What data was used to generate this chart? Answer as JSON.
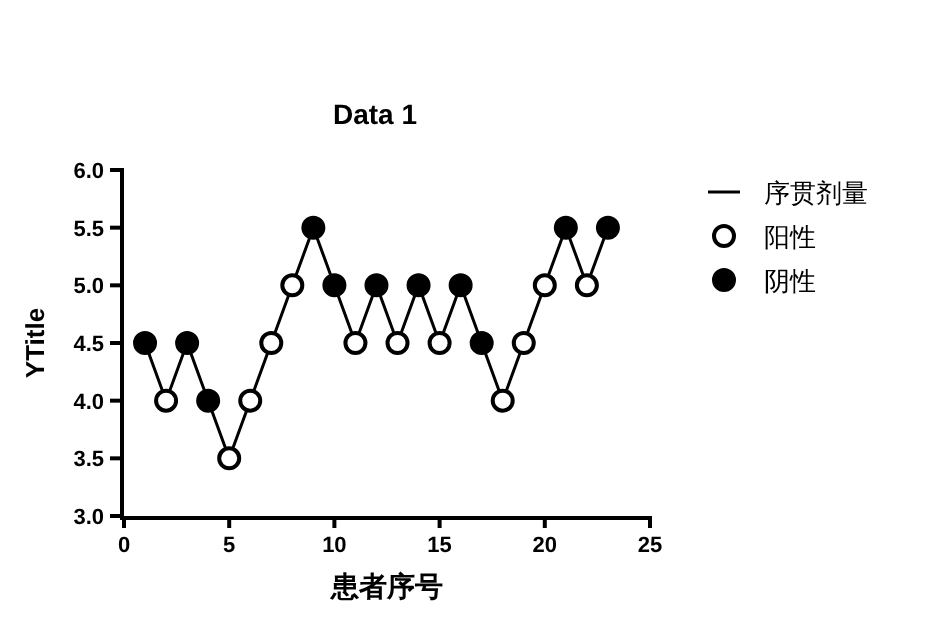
{
  "chart_data": {
    "type": "line",
    "title": "Data 1",
    "xlabel": "患者序号",
    "ylabel": "YTitle",
    "x": [
      1,
      2,
      3,
      4,
      5,
      6,
      7,
      8,
      9,
      10,
      11,
      12,
      13,
      14,
      15,
      16,
      17,
      18,
      19,
      20,
      21,
      22,
      23
    ],
    "series": [
      {
        "name": "序贯剂量",
        "color": "#000000",
        "marker": "none",
        "values": [
          4.5,
          4.0,
          4.5,
          4.0,
          3.5,
          4.0,
          4.5,
          5.0,
          5.5,
          5.0,
          4.5,
          5.0,
          4.5,
          5.0,
          4.5,
          5.0,
          4.5,
          4.0,
          4.5,
          5.0,
          5.5,
          5.0,
          5.5
        ]
      },
      {
        "name": "阳性",
        "type": "scatter",
        "color": "#ffffff",
        "marker": "circle",
        "values": [
          null,
          4.0,
          null,
          null,
          3.5,
          4.0,
          4.5,
          5.0,
          null,
          null,
          4.5,
          null,
          4.5,
          null,
          4.5,
          null,
          null,
          4.0,
          4.5,
          5.0,
          null,
          5.0,
          null
        ]
      },
      {
        "name": "阴性",
        "type": "scatter",
        "color": "#000000",
        "marker": "circle",
        "values": [
          4.5,
          null,
          4.5,
          4.0,
          null,
          null,
          null,
          null,
          5.5,
          5.0,
          null,
          5.0,
          null,
          5.0,
          null,
          5.0,
          4.5,
          null,
          null,
          null,
          5.5,
          null,
          5.5
        ]
      }
    ],
    "xlim": [
      0,
      25
    ],
    "xticks": [
      0,
      5,
      10,
      15,
      20,
      25
    ],
    "ylim": [
      3,
      6
    ],
    "yticks": [
      {
        "value": 3,
        "label": "3.0"
      },
      {
        "value": 3.5,
        "label": "3.5"
      },
      {
        "value": 4,
        "label": "4.0"
      },
      {
        "value": 4.5,
        "label": "4.5"
      },
      {
        "value": 5,
        "label": "5.0"
      },
      {
        "value": 5.5,
        "label": "5.5"
      },
      {
        "value": 6,
        "label": "6.0"
      }
    ],
    "grid": false,
    "legend": "right"
  }
}
